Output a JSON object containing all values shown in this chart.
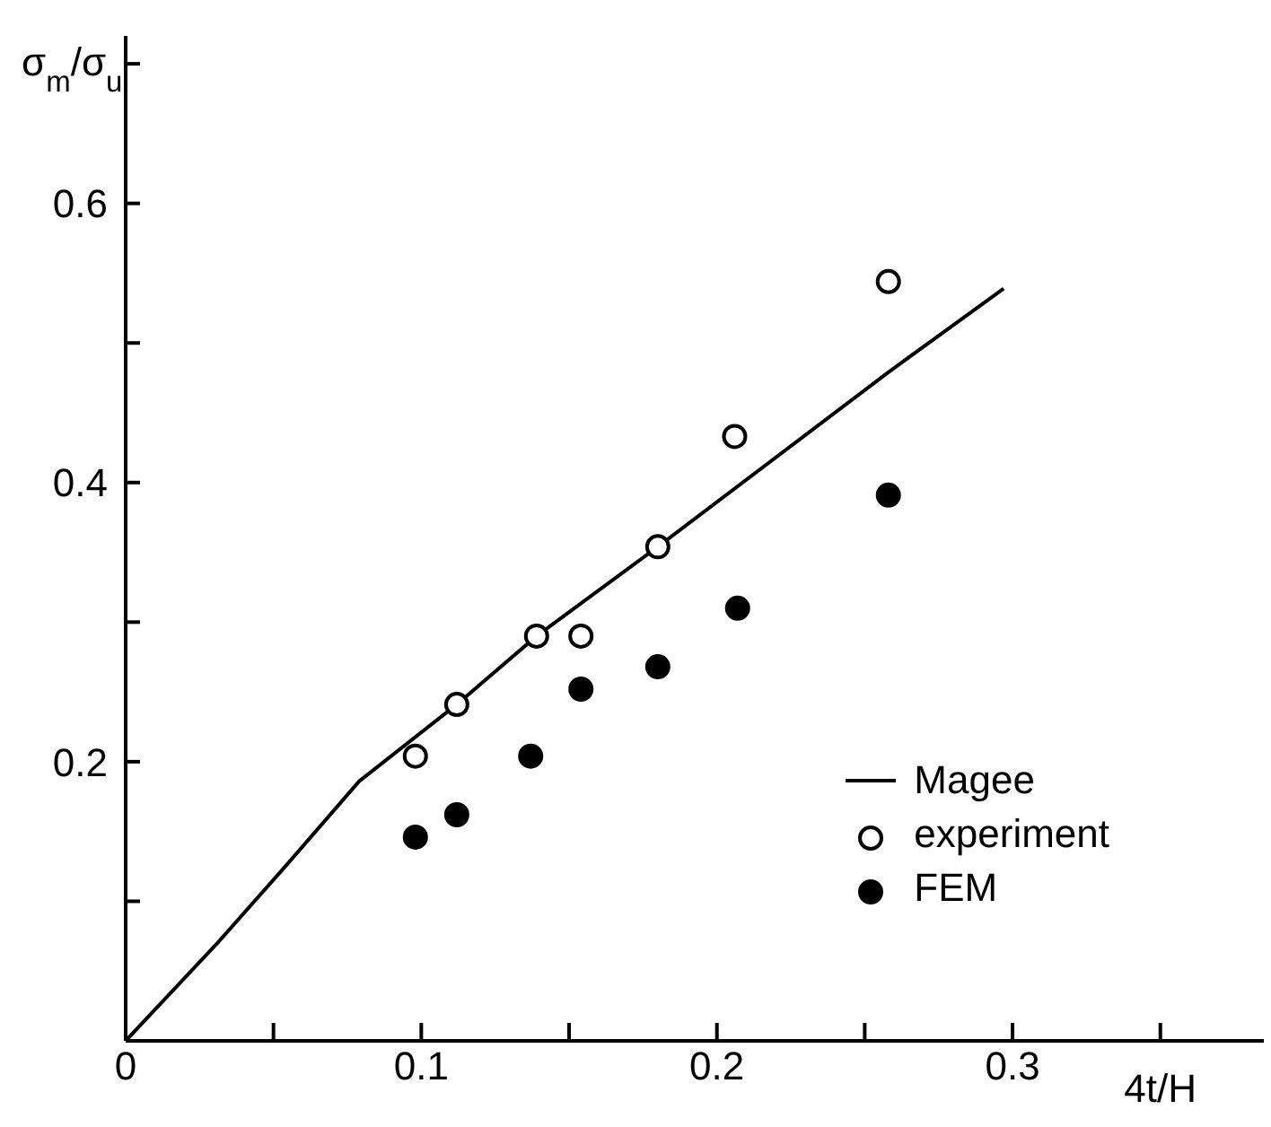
{
  "chart_data": {
    "type": "scatter",
    "ylabel": "σ$_{m}$/σ$_{u}$",
    "xlabel": "4t/H",
    "xlim": [
      0,
      0.385
    ],
    "ylim": [
      0,
      0.72
    ],
    "xticks": [
      {
        "value": 0,
        "label": "0"
      },
      {
        "value": 0.05,
        "label": null
      },
      0.1,
      {
        "value": 0.15,
        "label": null
      },
      0.2,
      {
        "value": 0.25,
        "label": null
      },
      0.3,
      {
        "value": 0.35,
        "label": null
      }
    ],
    "yticks": [
      {
        "value": 0.1,
        "label": null
      },
      0.2,
      {
        "value": 0.3,
        "label": null
      },
      0.4,
      {
        "value": 0.5,
        "label": null
      },
      0.6,
      {
        "value": 0.7,
        "label": null
      }
    ],
    "grid": false,
    "legend": "bottom right",
    "series": [
      {
        "name": "Magee",
        "type": "line",
        "color": "#000000",
        "marker": "none",
        "line_style": "solid",
        "x": [
          0,
          0.031,
          0.054,
          0.079,
          0.112,
          0.139,
          0.18,
          0.258,
          0.297
        ],
        "values": [
          0,
          0.07,
          0.125,
          0.186,
          0.241,
          0.29,
          0.354,
          0.479,
          0.539
        ]
      },
      {
        "name": "experiment",
        "type": "scatter",
        "color": "#ffffff",
        "marker": "circle",
        "x": [
          0.098,
          0.112,
          0.139,
          0.154,
          0.18,
          0.206,
          0.258
        ],
        "values": [
          0.204,
          0.241,
          0.29,
          0.29,
          0.354,
          0.433,
          0.544
        ]
      },
      {
        "name": "FEM",
        "type": "scatter",
        "color": "#000000",
        "marker": "circle",
        "x": [
          0.098,
          0.112,
          0.137,
          0.154,
          0.18,
          0.207,
          0.258
        ],
        "values": [
          0.146,
          0.162,
          0.204,
          0.252,
          0.268,
          0.31,
          0.391
        ]
      }
    ]
  }
}
